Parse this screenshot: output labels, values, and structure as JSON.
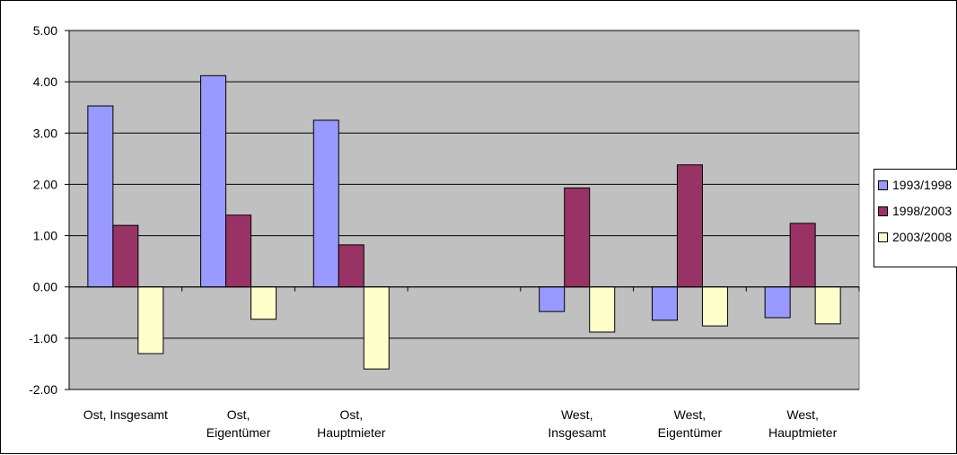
{
  "chart_data": {
    "type": "bar",
    "title": "",
    "xlabel": "",
    "ylabel": "",
    "ylim": [
      -2.0,
      5.0
    ],
    "ytick_step": 1.0,
    "y_tick_labels": [
      "5.00",
      "4.00",
      "3.00",
      "2.00",
      "1.00",
      "0.00",
      "-1.00",
      "-2.00"
    ],
    "grid": true,
    "legend_position": "right",
    "plot_background": "#c0c0c0",
    "categories": [
      [
        "Ost, Insgesamt"
      ],
      [
        "Ost,",
        "Eigentümer"
      ],
      [
        "Ost,",
        "Hauptmieter"
      ],
      [
        ""
      ],
      [
        "West,",
        "Insgesamt"
      ],
      [
        "West,",
        "Eigentümer"
      ],
      [
        "West,",
        "Hauptmieter"
      ]
    ],
    "series": [
      {
        "name": "1993/1998",
        "color": "#9999ff",
        "values": [
          3.53,
          4.12,
          3.25,
          null,
          -0.48,
          -0.65,
          -0.6
        ]
      },
      {
        "name": "1998/2003",
        "color": "#993366",
        "values": [
          1.2,
          1.4,
          0.82,
          null,
          1.93,
          2.38,
          1.24
        ]
      },
      {
        "name": "2003/2008",
        "color": "#ffffcc",
        "values": [
          -1.3,
          -0.63,
          -1.6,
          null,
          -0.88,
          -0.76,
          -0.72
        ]
      }
    ]
  }
}
